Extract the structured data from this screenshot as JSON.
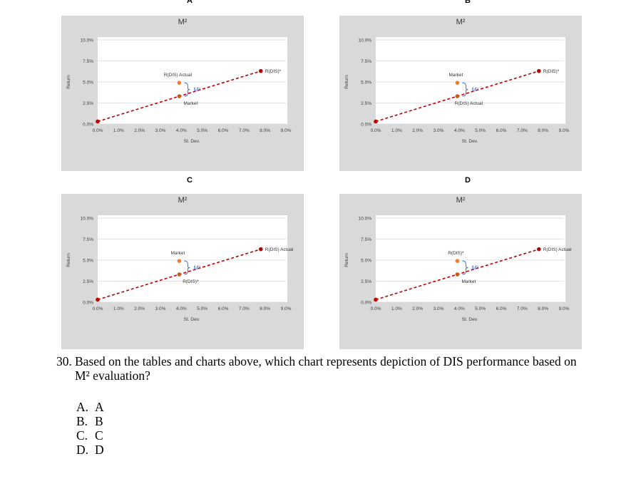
{
  "chart_data": [
    {
      "type": "scatter",
      "panel_label": "A",
      "title": "M²",
      "xlabel": "St. Dev.",
      "ylabel": "Return",
      "xlim": [
        0,
        0.09
      ],
      "ylim": [
        0,
        0.1
      ],
      "x_ticks": [
        "0.0%",
        "1.0%",
        "2.0%",
        "3.0%",
        "4.0%",
        "5.0%",
        "6.0%",
        "7.0%",
        "8.0%",
        "9.0%"
      ],
      "y_ticks": [
        "0.0%",
        "2.5%",
        "5.0%",
        "7.5%",
        "10.0%"
      ],
      "grid": true,
      "line": {
        "x": [
          0,
          0.078
        ],
        "y": [
          0.003,
          0.063
        ],
        "style": "dashed",
        "color": "#c00000"
      },
      "points": [
        {
          "x": 0.0,
          "y": 0.003,
          "label": "",
          "color": "#c00000"
        },
        {
          "x": 0.039,
          "y": 0.049,
          "label": "R(DIS) Actual",
          "color": "#ed7d31"
        },
        {
          "x": 0.039,
          "y": 0.033,
          "label": "Market",
          "color": "#c55a11"
        },
        {
          "x": 0.078,
          "y": 0.063,
          "label": "R(DIS)*",
          "color": "#c00000"
        }
      ],
      "annotation": "M²"
    },
    {
      "type": "scatter",
      "panel_label": "B",
      "title": "M²",
      "xlabel": "St. Dev.",
      "ylabel": "Return",
      "xlim": [
        0,
        0.09
      ],
      "ylim": [
        0,
        0.1
      ],
      "x_ticks": [
        "0.0%",
        "1.0%",
        "2.0%",
        "3.0%",
        "4.0%",
        "5.0%",
        "6.0%",
        "7.0%",
        "8.0%",
        "9.0%"
      ],
      "y_ticks": [
        "0.0%",
        "2.5%",
        "5.0%",
        "7.5%",
        "10.0%"
      ],
      "grid": true,
      "line": {
        "x": [
          0,
          0.078
        ],
        "y": [
          0.003,
          0.063
        ],
        "style": "dashed",
        "color": "#c00000"
      },
      "points": [
        {
          "x": 0.0,
          "y": 0.003,
          "label": "",
          "color": "#c00000"
        },
        {
          "x": 0.039,
          "y": 0.049,
          "label": "Market",
          "color": "#ed7d31"
        },
        {
          "x": 0.039,
          "y": 0.033,
          "label": "R(DIS) Actual",
          "color": "#c55a11"
        },
        {
          "x": 0.078,
          "y": 0.063,
          "label": "R(DIS)*",
          "color": "#c00000"
        }
      ],
      "annotation": "M²"
    },
    {
      "type": "scatter",
      "panel_label": "C",
      "title": "M²",
      "xlabel": "St. Dev.",
      "ylabel": "Return",
      "xlim": [
        0,
        0.09
      ],
      "ylim": [
        0,
        0.1
      ],
      "x_ticks": [
        "0.0%",
        "1.0%",
        "2.0%",
        "3.0%",
        "4.0%",
        "5.0%",
        "6.0%",
        "7.0%",
        "8.0%",
        "9.0%"
      ],
      "y_ticks": [
        "0.0%",
        "2.5%",
        "5.0%",
        "7.5%",
        "10.0%"
      ],
      "grid": true,
      "line": {
        "x": [
          0,
          0.078
        ],
        "y": [
          0.003,
          0.063
        ],
        "style": "dashed",
        "color": "#c00000"
      },
      "points": [
        {
          "x": 0.0,
          "y": 0.003,
          "label": "",
          "color": "#c00000"
        },
        {
          "x": 0.039,
          "y": 0.049,
          "label": "Market",
          "color": "#ed7d31"
        },
        {
          "x": 0.039,
          "y": 0.033,
          "label": "R(DIS)*",
          "color": "#c55a11"
        },
        {
          "x": 0.078,
          "y": 0.063,
          "label": "R(DIS) Actual",
          "color": "#c00000"
        }
      ],
      "annotation": "M²"
    },
    {
      "type": "scatter",
      "panel_label": "D",
      "title": "M²",
      "xlabel": "St. Dev.",
      "ylabel": "Return",
      "xlim": [
        0,
        0.09
      ],
      "ylim": [
        0,
        0.1
      ],
      "x_ticks": [
        "0.0%",
        "1.0%",
        "2.0%",
        "3.0%",
        "4.0%",
        "5.0%",
        "6.0%",
        "7.0%",
        "8.0%",
        "9.0%"
      ],
      "y_ticks": [
        "0.0%",
        "2.5%",
        "5.0%",
        "7.5%",
        "10.0%"
      ],
      "grid": true,
      "line": {
        "x": [
          0,
          0.078
        ],
        "y": [
          0.003,
          0.063
        ],
        "style": "dashed",
        "color": "#c00000"
      },
      "points": [
        {
          "x": 0.0,
          "y": 0.003,
          "label": "",
          "color": "#c00000"
        },
        {
          "x": 0.039,
          "y": 0.049,
          "label": "R(DIS)*",
          "color": "#ed7d31"
        },
        {
          "x": 0.039,
          "y": 0.033,
          "label": "Market",
          "color": "#c55a11"
        },
        {
          "x": 0.078,
          "y": 0.063,
          "label": "R(DIS) Actual",
          "color": "#c00000"
        }
      ],
      "annotation": "M²"
    }
  ],
  "question": {
    "number": "30.",
    "line1": "Based on the tables and charts above, which chart represents depiction of DIS performance based on",
    "line2": "M² evaluation?"
  },
  "options": [
    {
      "key": "A.",
      "value": "A"
    },
    {
      "key": "B.",
      "value": "B"
    },
    {
      "key": "C.",
      "value": "C"
    },
    {
      "key": "D.",
      "value": "D"
    }
  ],
  "colors": {
    "panel_bg": "#d9d9d9",
    "plot_bg": "#ffffff",
    "gridline": "#d9d9d9",
    "line": "#c00000",
    "annotation": "#4472c4"
  }
}
